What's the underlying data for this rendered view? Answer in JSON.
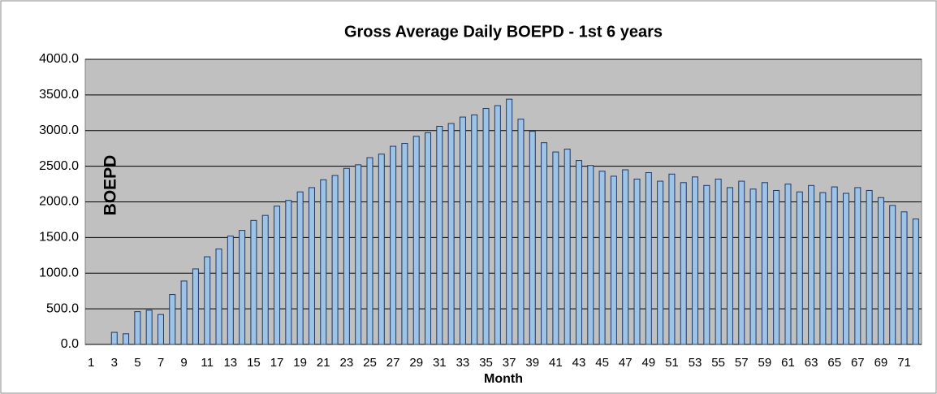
{
  "chart_data": {
    "type": "bar",
    "title": "Gross Average Daily BOEPD -  1st 6 years",
    "y_label": "BOEPD",
    "x_label": "Month",
    "categories": [
      1,
      null,
      3,
      null,
      5,
      null,
      7,
      null,
      9,
      null,
      11,
      null,
      13,
      null,
      15,
      null,
      17,
      null,
      19,
      null,
      21,
      null,
      23,
      null,
      25,
      null,
      27,
      null,
      29,
      null,
      31,
      null,
      33,
      null,
      35,
      null,
      37,
      null,
      39,
      null,
      41,
      null,
      43,
      null,
      45,
      null,
      47,
      null,
      49,
      null,
      51,
      null,
      53,
      null,
      55,
      null,
      57,
      null,
      59,
      null,
      61,
      null,
      63,
      null,
      65,
      null,
      67,
      null,
      69,
      null,
      71,
      null
    ],
    "values": [
      0,
      0,
      170,
      150,
      460,
      480,
      420,
      700,
      890,
      1060,
      1230,
      1340,
      1520,
      1600,
      1740,
      1810,
      1940,
      2020,
      2140,
      2200,
      2310,
      2370,
      2470,
      2520,
      2620,
      2670,
      2780,
      2820,
      2920,
      2970,
      3060,
      3100,
      3190,
      3220,
      3310,
      3350,
      3440,
      3160,
      2990,
      2830,
      2700,
      2740,
      2580,
      2510,
      2430,
      2360,
      2450,
      2320,
      2410,
      2290,
      2390,
      2270,
      2350,
      2230,
      2320,
      2200,
      2290,
      2180,
      2270,
      2160,
      2250,
      2140,
      2230,
      2130,
      2210,
      2120,
      2200,
      2160,
      2060,
      1950,
      1860,
      1760
    ],
    "color": "#9dc3e6",
    "ylim": [
      0,
      4000
    ],
    "yticks": [
      {
        "value": 0,
        "label": "0.0"
      },
      {
        "value": 500,
        "label": "500.0"
      },
      {
        "value": 1000,
        "label": "1000.0"
      },
      {
        "value": 1500,
        "label": "1500.0"
      },
      {
        "value": 2000,
        "label": "2000.0"
      },
      {
        "value": 2500,
        "label": "2500.0"
      },
      {
        "value": 3000,
        "label": "3000.0"
      },
      {
        "value": 3500,
        "label": "3500.0"
      },
      {
        "value": 4000,
        "label": "4000.0"
      }
    ],
    "grid": true
  }
}
